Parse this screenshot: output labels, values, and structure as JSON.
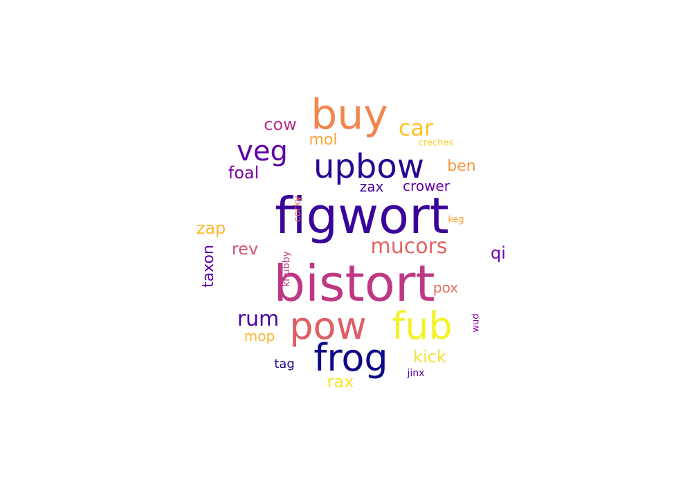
{
  "words": [
    {
      "text": "figwort",
      "color": "#3a049a",
      "orientation": "horizontal"
    },
    {
      "text": "bistort",
      "color": "#be3885",
      "orientation": "horizontal"
    },
    {
      "text": "upbow",
      "color": "#2a0593",
      "orientation": "horizontal"
    },
    {
      "text": "buy",
      "color": "#f0864f",
      "orientation": "horizontal"
    },
    {
      "text": "pow",
      "color": "#dd5e66",
      "orientation": "horizontal"
    },
    {
      "text": "fub",
      "color": "#f2f227",
      "orientation": "horizontal"
    },
    {
      "text": "frog",
      "color": "#0d0887",
      "orientation": "horizontal"
    },
    {
      "text": "veg",
      "color": "#5c01a6",
      "orientation": "horizontal"
    },
    {
      "text": "car",
      "color": "#fdc328",
      "orientation": "horizontal"
    },
    {
      "text": "mucors",
      "color": "#e16462",
      "orientation": "horizontal"
    },
    {
      "text": "cow",
      "color": "#b52f8c",
      "orientation": "horizontal"
    },
    {
      "text": "mol",
      "color": "#fca636",
      "orientation": "horizontal"
    },
    {
      "text": "foal",
      "color": "#7e03a8",
      "orientation": "horizontal"
    },
    {
      "text": "ben",
      "color": "#f89540",
      "orientation": "horizontal"
    },
    {
      "text": "zax",
      "color": "#3e049c",
      "orientation": "horizontal"
    },
    {
      "text": "crower",
      "color": "#6a00a8",
      "orientation": "horizontal"
    },
    {
      "text": "creches",
      "color": "#fcce25",
      "orientation": "horizontal"
    },
    {
      "text": "zap",
      "color": "#feb72d",
      "orientation": "horizontal"
    },
    {
      "text": "rev",
      "color": "#d5546e",
      "orientation": "horizontal"
    },
    {
      "text": "qi",
      "color": "#6f00a8",
      "orientation": "horizontal"
    },
    {
      "text": "keg",
      "color": "#fba238",
      "orientation": "horizontal"
    },
    {
      "text": "pox",
      "color": "#e66c5c",
      "orientation": "horizontal"
    },
    {
      "text": "rum",
      "color": "#4903a0",
      "orientation": "horizontal"
    },
    {
      "text": "mop",
      "color": "#fdb42f",
      "orientation": "horizontal"
    },
    {
      "text": "kick",
      "color": "#f3e035",
      "orientation": "horizontal"
    },
    {
      "text": "tag",
      "color": "#1f0c8c",
      "orientation": "horizontal"
    },
    {
      "text": "rax",
      "color": "#f7e225",
      "orientation": "horizontal"
    },
    {
      "text": "jinx",
      "color": "#5b02a3",
      "orientation": "horizontal"
    },
    {
      "text": "taxon",
      "color": "#6001a6",
      "orientation": "vertical"
    },
    {
      "text": "knubby",
      "color": "#c33d80",
      "orientation": "vertical"
    },
    {
      "text": "corky",
      "color": "#e97158",
      "orientation": "vertical"
    },
    {
      "text": "wud",
      "color": "#8b0aa5",
      "orientation": "vertical"
    }
  ]
}
